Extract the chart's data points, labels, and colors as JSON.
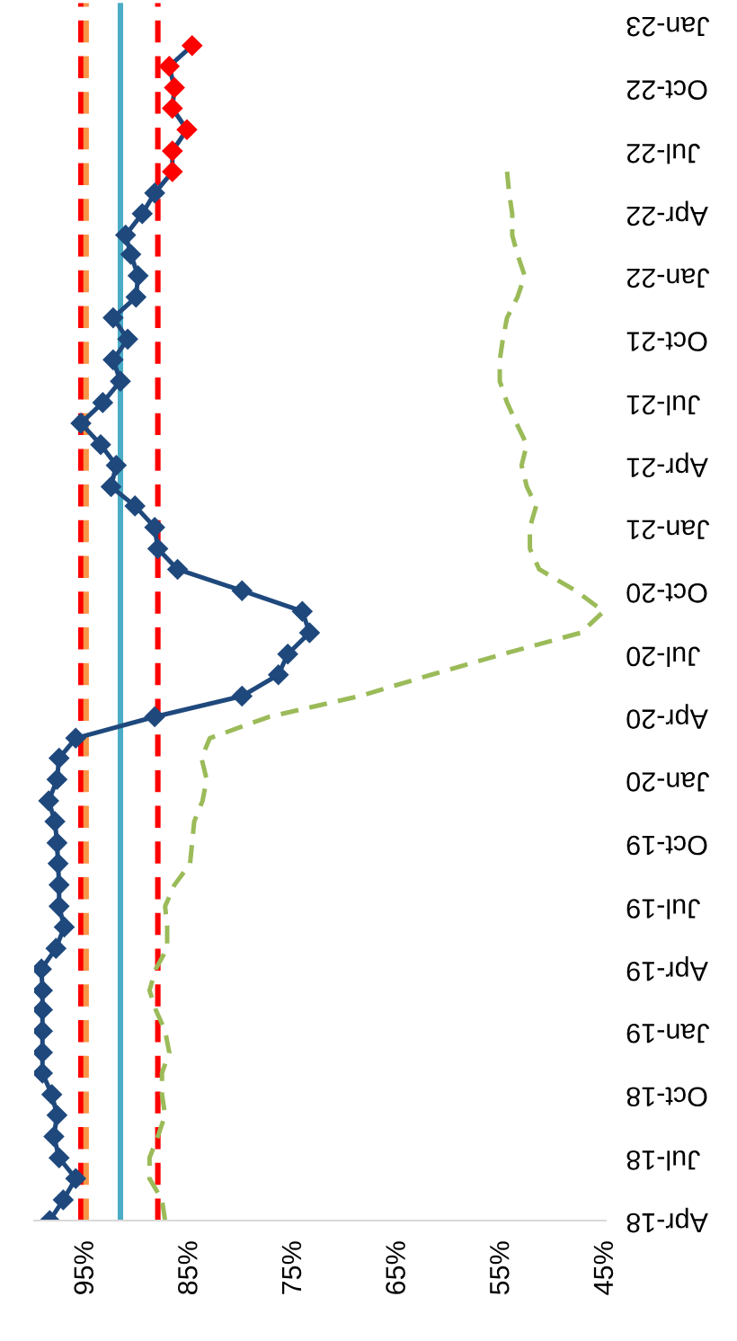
{
  "chart_data": {
    "type": "line",
    "orientation": "horizontal",
    "x": [
      "2018-04",
      "2018-05",
      "2018-06",
      "2018-07",
      "2018-08",
      "2018-09",
      "2018-10",
      "2018-11",
      "2018-12",
      "2019-01",
      "2019-02",
      "2019-03",
      "2019-04",
      "2019-05",
      "2019-06",
      "2019-07",
      "2019-08",
      "2019-09",
      "2019-10",
      "2019-11",
      "2019-12",
      "2020-01",
      "2020-02",
      "2020-03",
      "2020-04",
      "2020-05",
      "2020-06",
      "2020-07",
      "2020-08",
      "2020-09",
      "2020-10",
      "2020-11",
      "2020-12",
      "2021-01",
      "2021-02",
      "2021-03",
      "2021-04",
      "2021-05",
      "2021-06",
      "2021-07",
      "2021-08",
      "2021-09",
      "2021-10",
      "2021-11",
      "2021-12",
      "2022-01",
      "2022-02",
      "2022-03",
      "2022-04",
      "2022-05",
      "2022-06",
      "2022-07",
      "2022-08",
      "2022-09",
      "2022-10",
      "2022-11",
      "2022-12"
    ],
    "series": [
      {
        "color": "#1f497d",
        "marker": "diamond",
        "line_style": "solid",
        "colors": [
          "#1f497d",
          "#1f497d",
          "#1f497d",
          "#1f497d",
          "#1f497d",
          "#1f497d",
          "#1f497d",
          "#1f497d",
          "#1f497d",
          "#1f497d",
          "#1f497d",
          "#1f497d",
          "#1f497d",
          "#1f497d",
          "#1f497d",
          "#1f497d",
          "#1f497d",
          "#1f497d",
          "#1f497d",
          "#1f497d",
          "#1f497d",
          "#1f497d",
          "#1f497d",
          "#1f497d",
          "#1f497d",
          "#1f497d",
          "#1f497d",
          "#1f497d",
          "#1f497d",
          "#1f497d",
          "#1f497d",
          "#1f497d",
          "#1f497d",
          "#1f497d",
          "#1f497d",
          "#1f497d",
          "#1f497d",
          "#1f497d",
          "#1f497d",
          "#1f497d",
          "#1f497d",
          "#1f497d",
          "#1f497d",
          "#1f497d",
          "#1f497d",
          "#1f497d",
          "#1f497d",
          "#1f497d",
          "#1f497d",
          "#1f497d",
          "#ff0000",
          "#ff0000",
          "#ff0000",
          "#ff0000",
          "#ff0000",
          "#ff0000",
          "#ff0000"
        ],
        "values": [
          98.5,
          97.2,
          96.0,
          97.6,
          98.1,
          97.8,
          98.3,
          99.2,
          99.2,
          99.2,
          99.2,
          99.2,
          99.3,
          97.9,
          97.1,
          97.6,
          97.6,
          97.7,
          97.8,
          98.0,
          98.6,
          97.8,
          97.6,
          96.0,
          88.4,
          80.0,
          76.5,
          75.6,
          73.5,
          74.2,
          80.0,
          86.2,
          88.1,
          88.4,
          90.3,
          92.6,
          92.1,
          93.6,
          95.5,
          93.4,
          91.7,
          92.4,
          91.0,
          92.4,
          90.2,
          90.0,
          90.7,
          91.2,
          89.6,
          88.4,
          86.7,
          86.7,
          85.3,
          86.7,
          86.5,
          87.0,
          84.8
        ]
      },
      {
        "color": "#9bbb59",
        "marker": "none",
        "line_style": "dashed",
        "values": [
          87.4,
          87.7,
          88.9,
          88.9,
          88.1,
          87.4,
          87.7,
          87.7,
          87.0,
          87.4,
          88.3,
          88.9,
          88.3,
          87.2,
          87.2,
          87.4,
          86.5,
          85.0,
          84.8,
          84.6,
          83.8,
          83.4,
          83.9,
          83.1,
          77.4,
          68.7,
          61.8,
          54.9,
          47.4,
          45.2,
          47.9,
          51.4,
          52.3,
          52.3,
          51.7,
          52.6,
          53.1,
          52.6,
          53.6,
          54.5,
          55.2,
          55.2,
          54.9,
          54.5,
          53.5,
          52.8,
          53.5,
          54.0,
          54.0,
          54.3,
          54.5,
          null,
          null,
          null,
          null,
          null,
          null
        ]
      }
    ],
    "xlim": [
      100,
      45
    ],
    "xticks": [
      {
        "value": 95,
        "label": "95%"
      },
      {
        "value": 85,
        "label": "85%"
      },
      {
        "value": 75,
        "label": "75%"
      },
      {
        "value": 65,
        "label": "65%"
      },
      {
        "value": 55,
        "label": "55%"
      },
      {
        "value": 45,
        "label": "45%"
      }
    ],
    "ylim": [
      "2018-04-01",
      "2023-02-01"
    ],
    "yticks": [
      {
        "value": "2018-04",
        "label": "Apr-18"
      },
      {
        "value": "2018-07",
        "label": "Jul-18"
      },
      {
        "value": "2018-10",
        "label": "Oct-18"
      },
      {
        "value": "2019-01",
        "label": "Jan-19"
      },
      {
        "value": "2019-04",
        "label": "Apr-19"
      },
      {
        "value": "2019-07",
        "label": "Jul-19"
      },
      {
        "value": "2019-10",
        "label": "Oct-19"
      },
      {
        "value": "2020-01",
        "label": "Jan-20"
      },
      {
        "value": "2020-04",
        "label": "Apr-20"
      },
      {
        "value": "2020-07",
        "label": "Jul-20"
      },
      {
        "value": "2020-10",
        "label": "Oct-20"
      },
      {
        "value": "2021-01",
        "label": "Jan-21"
      },
      {
        "value": "2021-04",
        "label": "Apr-21"
      },
      {
        "value": "2021-07",
        "label": "Jul-21"
      },
      {
        "value": "2021-10",
        "label": "Oct-21"
      },
      {
        "value": "2022-01",
        "label": "Jan-22"
      },
      {
        "value": "2022-04",
        "label": "Apr-22"
      },
      {
        "value": "2022-07",
        "label": "Jul-22"
      },
      {
        "value": "2022-10",
        "label": "Oct-22"
      },
      {
        "value": "2023-01",
        "label": "Jan-23"
      }
    ],
    "ref_lines": [
      {
        "axis": "x",
        "value": 95.5,
        "color": "#ff0000",
        "line_style": "dashed"
      },
      {
        "axis": "x",
        "value": 95.0,
        "color": "#f79646",
        "line_style": "dashed"
      },
      {
        "axis": "x",
        "value": 91.7,
        "color": "#4bacc6",
        "line_style": "solid"
      },
      {
        "axis": "x",
        "value": 88.1,
        "color": "#ff0000",
        "line_style": "dashed"
      }
    ],
    "grid": false,
    "legend": false
  }
}
